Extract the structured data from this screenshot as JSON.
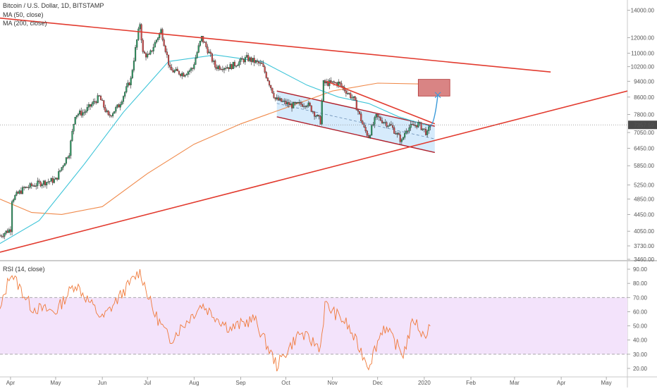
{
  "legend": {
    "symbol": "Bitcoin / U.S. Dollar, 1D, BITSTAMP",
    "ma50": "MA (50, close)",
    "ma200": "MA (200, close)",
    "rsi": "RSI (14, close)"
  },
  "colors": {
    "up_candle": "#2d9b63",
    "down_candle": "#d24b4b",
    "wick": "#222222",
    "ma50": "#3cc4d8",
    "ma200": "#f08a4b",
    "trendline": "#e23b2f",
    "channel_fill": "#cfe7fb",
    "channel_edge": "#b01f2a",
    "target_box": "#d98484",
    "projection": "#3a9ad9",
    "rsi_line": "#f07a3a",
    "rsi_band": "#f3e3fb",
    "current_price_bg": "#4a4a4a"
  },
  "price_axis": {
    "ticks": [
      "14000.00",
      "12000.00",
      "11000.00",
      "10200.00",
      "9400.00",
      "8600.00",
      "7800.00",
      "7050.00",
      "6450.00",
      "5850.00",
      "5250.00",
      "4850.00",
      "4450.00",
      "4050.00",
      "3730.00",
      "3460.00"
    ],
    "current_price": "7357.59"
  },
  "time_axis": {
    "ticks": [
      "Apr",
      "May",
      "Jun",
      "Jul",
      "Aug",
      "Sep",
      "Oct",
      "Nov",
      "Dec",
      "2020",
      "Feb",
      "Mar",
      "Apr",
      "May"
    ]
  },
  "rsi_axis": {
    "ticks": [
      "90.00",
      "80.00",
      "70.00",
      "60.00",
      "50.00",
      "40.00",
      "30.00",
      "20.00"
    ]
  },
  "chart_data": {
    "type": "candlestick",
    "title": "Bitcoin / U.S. Dollar, 1D, BITSTAMP",
    "x_range": [
      "2019-03-25",
      "2020-05-15"
    ],
    "y_scale": "log",
    "ylim": [
      3460,
      14600
    ],
    "current_price": 7357.59,
    "price_path": [
      [
        "2019-03-25",
        3950
      ],
      [
        "2019-04-01",
        4100
      ],
      [
        "2019-04-02",
        4850
      ],
      [
        "2019-04-10",
        5150
      ],
      [
        "2019-04-20",
        5300
      ],
      [
        "2019-05-01",
        5400
      ],
      [
        "2019-05-10",
        6300
      ],
      [
        "2019-05-14",
        7800
      ],
      [
        "2019-05-20",
        7900
      ],
      [
        "2019-05-30",
        8600
      ],
      [
        "2019-06-05",
        7700
      ],
      [
        "2019-06-12",
        8200
      ],
      [
        "2019-06-20",
        9500
      ],
      [
        "2019-06-26",
        13000
      ],
      [
        "2019-06-28",
        11000
      ],
      [
        "2019-07-02",
        10800
      ],
      [
        "2019-07-10",
        12500
      ],
      [
        "2019-07-16",
        10000
      ],
      [
        "2019-07-25",
        9800
      ],
      [
        "2019-07-31",
        10100
      ],
      [
        "2019-08-06",
        12000
      ],
      [
        "2019-08-15",
        10200
      ],
      [
        "2019-08-25",
        10200
      ],
      [
        "2019-09-05",
        10700
      ],
      [
        "2019-09-15",
        10300
      ],
      [
        "2019-09-24",
        8500
      ],
      [
        "2019-10-05",
        8200
      ],
      [
        "2019-10-15",
        8300
      ],
      [
        "2019-10-24",
        7500
      ],
      [
        "2019-10-26",
        9300
      ],
      [
        "2019-11-05",
        9300
      ],
      [
        "2019-11-15",
        8500
      ],
      [
        "2019-11-22",
        7200
      ],
      [
        "2019-11-25",
        6900
      ],
      [
        "2019-11-30",
        7700
      ],
      [
        "2019-12-10",
        7300
      ],
      [
        "2019-12-17",
        6700
      ],
      [
        "2019-12-20",
        7200
      ],
      [
        "2019-12-28",
        7400
      ],
      [
        "2020-01-03",
        7000
      ],
      [
        "2020-01-05",
        7357
      ]
    ],
    "ma50": [
      [
        "2019-03-25",
        3780
      ],
      [
        "2019-04-20",
        4300
      ],
      [
        "2019-05-20",
        5900
      ],
      [
        "2019-06-15",
        7900
      ],
      [
        "2019-07-15",
        10500
      ],
      [
        "2019-08-15",
        10900
      ],
      [
        "2019-09-15",
        10500
      ],
      [
        "2019-10-15",
        9200
      ],
      [
        "2019-11-05",
        8600
      ],
      [
        "2019-11-25",
        8300
      ],
      [
        "2019-12-15",
        7700
      ],
      [
        "2020-01-05",
        7300
      ]
    ],
    "ma200": [
      [
        "2019-03-25",
        4850
      ],
      [
        "2019-04-15",
        4500
      ],
      [
        "2019-05-05",
        4450
      ],
      [
        "2019-06-01",
        4650
      ],
      [
        "2019-07-01",
        5600
      ],
      [
        "2019-08-01",
        6600
      ],
      [
        "2019-09-01",
        7400
      ],
      [
        "2019-10-01",
        8100
      ],
      [
        "2019-11-01",
        8900
      ],
      [
        "2019-12-01",
        9300
      ],
      [
        "2020-01-05",
        9250
      ]
    ],
    "rsi": [
      [
        "2019-03-25",
        60
      ],
      [
        "2019-04-01",
        88
      ],
      [
        "2019-04-15",
        63
      ],
      [
        "2019-05-01",
        60
      ],
      [
        "2019-05-14",
        80
      ],
      [
        "2019-06-01",
        55
      ],
      [
        "2019-06-26",
        89
      ],
      [
        "2019-07-05",
        60
      ],
      [
        "2019-07-16",
        40
      ],
      [
        "2019-08-06",
        65
      ],
      [
        "2019-08-25",
        48
      ],
      [
        "2019-09-10",
        55
      ],
      [
        "2019-09-25",
        22
      ],
      [
        "2019-10-10",
        45
      ],
      [
        "2019-10-24",
        35
      ],
      [
        "2019-10-27",
        65
      ],
      [
        "2019-11-10",
        52
      ],
      [
        "2019-11-25",
        22
      ],
      [
        "2019-12-05",
        50
      ],
      [
        "2019-12-18",
        30
      ],
      [
        "2019-12-25",
        55
      ],
      [
        "2020-01-01",
        42
      ],
      [
        "2020-01-05",
        52
      ]
    ],
    "rsi_levels": {
      "upper": 70,
      "lower": 30
    },
    "drawings": {
      "resistance_line": [
        [
          "2019-03-25",
          13400
        ],
        [
          "2020-03-25",
          9900
        ]
      ],
      "support_line": [
        [
          "2019-03-25",
          3600
        ],
        [
          "2020-05-15",
          8900
        ]
      ],
      "channel_upper": [
        [
          "2019-09-25",
          8900
        ],
        [
          "2020-01-08",
          7300
        ]
      ],
      "channel_lower": [
        [
          "2019-09-25",
          7700
        ],
        [
          "2020-01-08",
          6300
        ]
      ],
      "channel_mid": [
        [
          "2019-09-25",
          8300
        ],
        [
          "2020-01-08",
          6800
        ]
      ],
      "falling_wedge_top": [
        [
          "2019-10-28",
          9400
        ],
        [
          "2020-01-08",
          7400
        ]
      ],
      "target_zone": {
        "from": [
          "2019-12-28",
          8650
        ],
        "to": [
          "2020-01-18",
          9500
        ]
      },
      "projection": [
        [
          "2020-01-05",
          7300
        ],
        [
          "2020-01-10",
          8700
        ]
      ]
    }
  }
}
